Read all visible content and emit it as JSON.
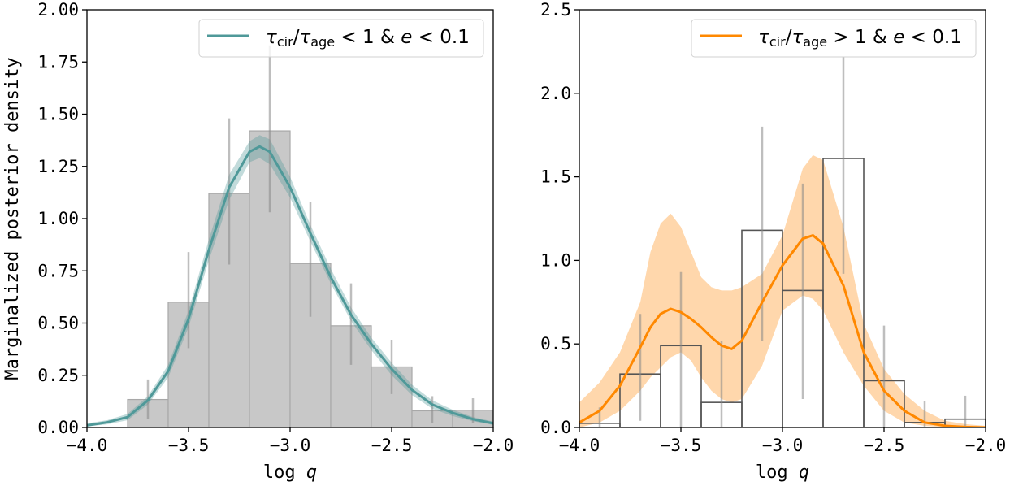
{
  "chart_data": [
    {
      "type": "bar",
      "panel": "left",
      "xlabel": "log q",
      "ylabel": "Marginalized posterior density",
      "xlim": [
        -4.0,
        -2.0
      ],
      "ylim": [
        0,
        2.0
      ],
      "xticks": [
        -4.0,
        -3.5,
        -3.0,
        -2.5,
        -2.0
      ],
      "xtick_labels": [
        "−4.0",
        "−3.5",
        "−3.0",
        "−2.5",
        "−2.0"
      ],
      "yticks": [
        0,
        0.25,
        0.5,
        0.75,
        1.0,
        1.25,
        1.5,
        1.75,
        2.0
      ],
      "ytick_labels": [
        "0.00",
        "0.25",
        "0.50",
        "0.75",
        "1.00",
        "1.25",
        "1.50",
        "1.75",
        "2.00"
      ],
      "legend": {
        "label": "τcir/τage < 1 & e < 0.1",
        "placement": "top-right"
      },
      "histogram": {
        "style": "filled",
        "color": "#c8c8c8",
        "bin_edges": [
          -3.8,
          -3.6,
          -3.4,
          -3.2,
          -3.0,
          -2.8,
          -2.6,
          -2.4,
          -2.2,
          -2.0
        ],
        "values": [
          0.134,
          0.6,
          1.12,
          1.42,
          0.785,
          0.487,
          0.29,
          0.08,
          0.083
        ],
        "error_low": [
          0.04,
          0.38,
          0.78,
          1.03,
          0.53,
          0.3,
          0.16,
          0.02,
          0.02
        ],
        "error_high": [
          0.23,
          0.84,
          1.48,
          1.83,
          1.08,
          0.69,
          0.42,
          0.15,
          0.14
        ]
      },
      "curve": {
        "color": "#4f9999",
        "x": [
          -4.0,
          -3.9,
          -3.8,
          -3.7,
          -3.6,
          -3.5,
          -3.4,
          -3.3,
          -3.2,
          -3.15,
          -3.1,
          -3.0,
          -2.9,
          -2.8,
          -2.7,
          -2.6,
          -2.5,
          -2.4,
          -2.3,
          -2.2,
          -2.1,
          -2.0
        ],
        "y": [
          0.01,
          0.025,
          0.05,
          0.13,
          0.27,
          0.52,
          0.85,
          1.15,
          1.32,
          1.345,
          1.32,
          1.15,
          0.93,
          0.72,
          0.54,
          0.4,
          0.28,
          0.18,
          0.11,
          0.07,
          0.04,
          0.02
        ],
        "band_low": [
          0.005,
          0.015,
          0.035,
          0.11,
          0.24,
          0.48,
          0.8,
          1.09,
          1.27,
          1.29,
          1.26,
          1.1,
          0.89,
          0.69,
          0.51,
          0.37,
          0.25,
          0.155,
          0.09,
          0.055,
          0.03,
          0.012
        ],
        "band_high": [
          0.02,
          0.035,
          0.065,
          0.15,
          0.3,
          0.56,
          0.9,
          1.21,
          1.37,
          1.4,
          1.38,
          1.2,
          0.97,
          0.76,
          0.575,
          0.43,
          0.31,
          0.205,
          0.13,
          0.085,
          0.05,
          0.028
        ]
      }
    },
    {
      "type": "bar",
      "panel": "right",
      "xlabel": "log q",
      "ylabel": "",
      "xlim": [
        -4.0,
        -2.0
      ],
      "ylim": [
        0,
        2.5
      ],
      "xticks": [
        -4.0,
        -3.5,
        -3.0,
        -2.5,
        -2.0
      ],
      "xtick_labels": [
        "−4.0",
        "−3.5",
        "−3.0",
        "−2.5",
        "−2.0"
      ],
      "yticks": [
        0,
        0.5,
        1.0,
        1.5,
        2.0,
        2.5
      ],
      "ytick_labels": [
        "0.0",
        "0.5",
        "1.0",
        "1.5",
        "2.0",
        "2.5"
      ],
      "legend": {
        "label": "τcir/τage > 1 & e < 0.1",
        "placement": "top-right"
      },
      "histogram": {
        "style": "outline",
        "color": "#555555",
        "bin_edges": [
          -4.0,
          -3.8,
          -3.6,
          -3.4,
          -3.2,
          -3.0,
          -2.8,
          -2.6,
          -2.4,
          -2.2,
          -2.0
        ],
        "values": [
          0.025,
          0.32,
          0.49,
          0.15,
          1.18,
          0.82,
          1.61,
          0.28,
          0.03,
          0.05
        ],
        "error_low": [
          0,
          0.04,
          0,
          0,
          0.52,
          0.17,
          0.92,
          0,
          0,
          0
        ],
        "error_high": [
          0.12,
          0.68,
          0.93,
          0.52,
          1.8,
          1.46,
          2.22,
          0.61,
          0.16,
          0.19
        ]
      },
      "curve": {
        "color": "#ff8800",
        "band_color": "#ffd3a3",
        "x": [
          -4.0,
          -3.9,
          -3.8,
          -3.7,
          -3.65,
          -3.6,
          -3.55,
          -3.5,
          -3.45,
          -3.4,
          -3.35,
          -3.3,
          -3.25,
          -3.2,
          -3.1,
          -3.0,
          -2.9,
          -2.85,
          -2.8,
          -2.7,
          -2.6,
          -2.5,
          -2.4,
          -2.3,
          -2.2,
          -2.1,
          -2.0
        ],
        "y": [
          0.03,
          0.1,
          0.25,
          0.48,
          0.6,
          0.68,
          0.71,
          0.69,
          0.65,
          0.6,
          0.54,
          0.49,
          0.47,
          0.52,
          0.75,
          0.97,
          1.13,
          1.15,
          1.1,
          0.85,
          0.45,
          0.22,
          0.1,
          0.03,
          0.01,
          0.003,
          0.0
        ],
        "band_low": [
          0,
          0.03,
          0.1,
          0.22,
          0.3,
          0.36,
          0.42,
          0.45,
          0.4,
          0.3,
          0.22,
          0.17,
          0.15,
          0.17,
          0.37,
          0.7,
          0.79,
          0.77,
          0.7,
          0.45,
          0.25,
          0.1,
          0.03,
          0.01,
          0.002,
          0,
          0
        ],
        "band_high": [
          0.15,
          0.27,
          0.45,
          0.75,
          1.05,
          1.22,
          1.28,
          1.2,
          1.05,
          0.9,
          0.84,
          0.82,
          0.82,
          0.84,
          0.92,
          1.15,
          1.55,
          1.63,
          1.6,
          1.2,
          0.62,
          0.35,
          0.2,
          0.1,
          0.04,
          0.02,
          0.01
        ]
      }
    }
  ]
}
